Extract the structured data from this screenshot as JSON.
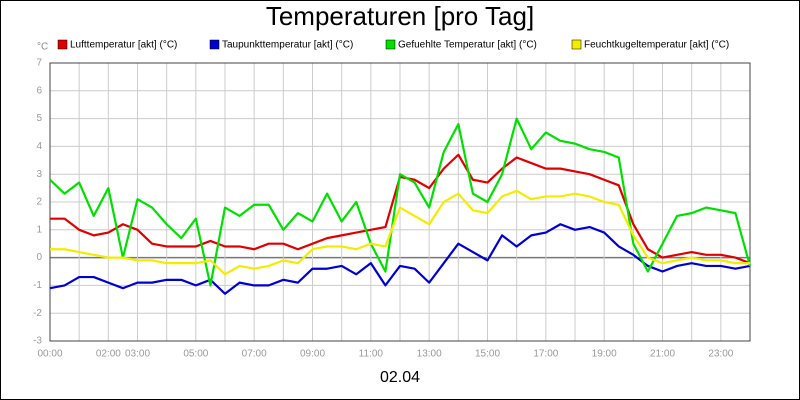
{
  "chart_data": {
    "type": "line",
    "title": "Temperaturen [pro Tag]",
    "y_unit": "°C",
    "x_label": "02.04",
    "x": [
      0,
      0.5,
      1,
      1.5,
      2,
      2.5,
      3,
      3.5,
      4,
      4.5,
      5,
      5.5,
      6,
      6.5,
      7,
      7.5,
      8,
      8.5,
      9,
      9.5,
      10,
      10.5,
      11,
      11.5,
      12,
      12.5,
      13,
      13.5,
      14,
      14.5,
      15,
      15.5,
      16,
      16.5,
      17,
      17.5,
      18,
      18.5,
      19,
      19.5,
      20,
      20.5,
      21,
      21.5,
      22,
      22.5,
      23,
      23.5,
      24
    ],
    "xlim": [
      0,
      24
    ],
    "xticks": [
      {
        "value": 0,
        "label": "00:00"
      },
      {
        "value": 2,
        "label": "02:00"
      },
      {
        "value": 3,
        "label": "03:00"
      },
      {
        "value": 5,
        "label": "05:00"
      },
      {
        "value": 7,
        "label": "07:00"
      },
      {
        "value": 9,
        "label": "09:00"
      },
      {
        "value": 11,
        "label": "11:00"
      },
      {
        "value": 13,
        "label": "13:00"
      },
      {
        "value": 15,
        "label": "15:00"
      },
      {
        "value": 17,
        "label": "17:00"
      },
      {
        "value": 19,
        "label": "19:00"
      },
      {
        "value": 21,
        "label": "21:00"
      },
      {
        "value": 23,
        "label": "23:00"
      }
    ],
    "xminor_ticks": [
      1,
      4,
      6,
      8,
      10,
      12,
      14,
      16,
      18,
      20,
      22
    ],
    "ylim": [
      -3,
      7
    ],
    "yticks": [
      -3,
      -2,
      -1,
      0,
      1,
      2,
      3,
      4,
      5,
      6,
      7
    ],
    "grid": true,
    "series": [
      {
        "name": "Lufttemperatur [akt] (°C)",
        "color": "#e00000",
        "values": [
          1.4,
          1.4,
          1.0,
          0.8,
          0.9,
          1.2,
          1.0,
          0.5,
          0.4,
          0.4,
          0.4,
          0.6,
          0.4,
          0.4,
          0.3,
          0.5,
          0.5,
          0.3,
          0.5,
          0.7,
          0.8,
          0.9,
          1.0,
          1.1,
          2.9,
          2.8,
          2.5,
          3.2,
          3.7,
          2.8,
          2.7,
          3.2,
          3.6,
          3.4,
          3.2,
          3.2,
          3.1,
          3.0,
          2.8,
          2.6,
          1.2,
          0.3,
          0.0,
          0.1,
          0.2,
          0.1,
          0.1,
          0.0,
          -0.2
        ]
      },
      {
        "name": "Taupunkttemperatur [akt] (°C)",
        "color": "#0000d0",
        "values": [
          -1.1,
          -1.0,
          -0.7,
          -0.7,
          -0.9,
          -1.1,
          -0.9,
          -0.9,
          -0.8,
          -0.8,
          -1.0,
          -0.8,
          -1.3,
          -0.9,
          -1.0,
          -1.0,
          -0.8,
          -0.9,
          -0.4,
          -0.4,
          -0.3,
          -0.6,
          -0.2,
          -1.0,
          -0.3,
          -0.4,
          -0.9,
          -0.2,
          0.5,
          0.2,
          -0.1,
          0.8,
          0.4,
          0.8,
          0.9,
          1.2,
          1.0,
          1.1,
          0.9,
          0.4,
          0.1,
          -0.3,
          -0.5,
          -0.3,
          -0.2,
          -0.3,
          -0.3,
          -0.4,
          -0.3
        ]
      },
      {
        "name": "Gefuehlte Temperatur [akt] (°C)",
        "color": "#00e000",
        "values": [
          2.8,
          2.3,
          2.7,
          1.5,
          2.5,
          0.0,
          2.1,
          1.8,
          1.2,
          0.7,
          1.4,
          -1.0,
          1.8,
          1.5,
          1.9,
          1.9,
          1.0,
          1.6,
          1.3,
          2.3,
          1.3,
          2.0,
          0.5,
          -0.5,
          3.0,
          2.7,
          1.8,
          3.8,
          4.8,
          2.3,
          2.0,
          3.0,
          5.0,
          3.9,
          4.5,
          4.2,
          4.1,
          3.9,
          3.8,
          3.6,
          0.5,
          -0.5,
          0.5,
          1.5,
          1.6,
          1.8,
          1.7,
          1.6,
          -0.3
        ]
      },
      {
        "name": "Feuchtkugeltemperatur [akt] (°C)",
        "color": "#f4ec00",
        "values": [
          0.3,
          0.3,
          0.2,
          0.1,
          0.0,
          0.0,
          -0.1,
          -0.1,
          -0.2,
          -0.2,
          -0.2,
          -0.1,
          -0.6,
          -0.3,
          -0.4,
          -0.3,
          -0.1,
          -0.2,
          0.3,
          0.4,
          0.4,
          0.3,
          0.5,
          0.4,
          1.8,
          1.5,
          1.2,
          2.0,
          2.3,
          1.7,
          1.6,
          2.2,
          2.4,
          2.1,
          2.2,
          2.2,
          2.3,
          2.2,
          2.0,
          1.9,
          0.8,
          0.0,
          -0.2,
          -0.1,
          0.0,
          -0.1,
          -0.1,
          -0.2,
          -0.2
        ]
      }
    ]
  }
}
